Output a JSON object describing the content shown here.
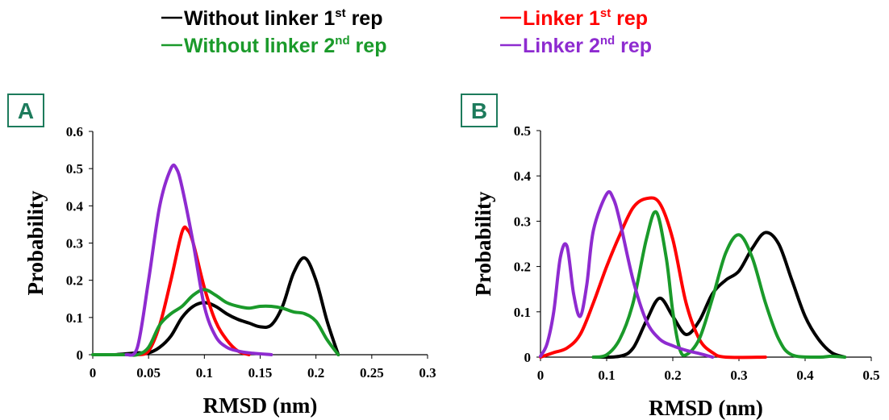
{
  "chart_data": [
    {
      "type": "line",
      "panel": "A",
      "x_label": "RMSD (nm)",
      "y_label": "Probability",
      "xlim": [
        0,
        0.3
      ],
      "ylim": [
        0,
        0.6
      ],
      "xticks": [
        0,
        0.05,
        0.1,
        0.15,
        0.2,
        0.25,
        0.3
      ],
      "yticks": [
        0,
        0.1,
        0.2,
        0.3,
        0.4,
        0.5,
        0.6
      ],
      "series": [
        {
          "name": [
            "Without linker 1",
            "st",
            " rep"
          ],
          "color": "#000000",
          "x": [
            0.02,
            0.04,
            0.05,
            0.06,
            0.07,
            0.08,
            0.09,
            0.1,
            0.11,
            0.12,
            0.13,
            0.14,
            0.15,
            0.16,
            0.17,
            0.18,
            0.19,
            0.2,
            0.21,
            0.22
          ],
          "values": [
            0,
            0.005,
            0.005,
            0.02,
            0.05,
            0.1,
            0.13,
            0.14,
            0.13,
            0.11,
            0.095,
            0.085,
            0.075,
            0.08,
            0.13,
            0.22,
            0.26,
            0.2,
            0.09,
            0
          ]
        },
        {
          "name": [
            "Linker 1",
            "st",
            " rep"
          ],
          "color": "#ff0000",
          "x": [
            0.04,
            0.05,
            0.06,
            0.07,
            0.08,
            0.085,
            0.09,
            0.1,
            0.11,
            0.12,
            0.13,
            0.14
          ],
          "values": [
            0,
            0.01,
            0.08,
            0.2,
            0.33,
            0.335,
            0.3,
            0.18,
            0.09,
            0.04,
            0.01,
            0
          ]
        },
        {
          "name": [
            "Without linker 2",
            "nd",
            " rep"
          ],
          "color": "#1a9a2a",
          "x": [
            0,
            0.03,
            0.04,
            0.05,
            0.06,
            0.07,
            0.08,
            0.09,
            0.1,
            0.11,
            0.12,
            0.13,
            0.14,
            0.15,
            0.16,
            0.17,
            0.18,
            0.19,
            0.2,
            0.21,
            0.22
          ],
          "values": [
            0,
            0,
            0,
            0.02,
            0.08,
            0.11,
            0.13,
            0.16,
            0.175,
            0.16,
            0.14,
            0.13,
            0.125,
            0.13,
            0.13,
            0.125,
            0.115,
            0.11,
            0.09,
            0.04,
            0
          ]
        },
        {
          "name": [
            "Linker 2",
            "nd",
            " rep"
          ],
          "color": "#8e2bd0",
          "x": [
            0.03,
            0.04,
            0.05,
            0.06,
            0.07,
            0.075,
            0.08,
            0.09,
            0.1,
            0.11,
            0.12,
            0.13,
            0.14,
            0.16
          ],
          "values": [
            0,
            0.02,
            0.2,
            0.4,
            0.5,
            0.5,
            0.45,
            0.3,
            0.13,
            0.05,
            0.02,
            0.01,
            0.005,
            0
          ]
        }
      ]
    },
    {
      "type": "line",
      "panel": "B",
      "x_label": "RMSD (nm)",
      "y_label": "Probability",
      "xlim": [
        0,
        0.5
      ],
      "ylim": [
        0,
        0.5
      ],
      "xticks": [
        0,
        0.1,
        0.2,
        0.3,
        0.4,
        0.5
      ],
      "yticks": [
        0,
        0.1,
        0.2,
        0.3,
        0.4,
        0.5
      ],
      "series": [
        {
          "color": "#000000",
          "x": [
            0.08,
            0.12,
            0.14,
            0.16,
            0.18,
            0.2,
            0.22,
            0.24,
            0.26,
            0.28,
            0.3,
            0.32,
            0.34,
            0.36,
            0.38,
            0.4,
            0.42,
            0.44,
            0.46
          ],
          "values": [
            0,
            0.002,
            0.02,
            0.08,
            0.13,
            0.09,
            0.05,
            0.08,
            0.14,
            0.17,
            0.19,
            0.24,
            0.275,
            0.25,
            0.17,
            0.09,
            0.04,
            0.01,
            0
          ]
        },
        {
          "color": "#ff0000",
          "x": [
            0,
            0.02,
            0.04,
            0.06,
            0.08,
            0.1,
            0.12,
            0.14,
            0.16,
            0.18,
            0.2,
            0.22,
            0.24,
            0.26,
            0.28,
            0.34
          ],
          "values": [
            0,
            0.01,
            0.02,
            0.05,
            0.12,
            0.2,
            0.27,
            0.33,
            0.35,
            0.34,
            0.26,
            0.12,
            0.04,
            0.01,
            0,
            0
          ]
        },
        {
          "color": "#1a9a2a",
          "x": [
            0.08,
            0.1,
            0.12,
            0.14,
            0.16,
            0.175,
            0.19,
            0.2,
            0.21,
            0.22,
            0.24,
            0.26,
            0.28,
            0.3,
            0.32,
            0.34,
            0.36,
            0.38,
            0.42,
            0.44,
            0.46
          ],
          "values": [
            0,
            0.005,
            0.04,
            0.12,
            0.26,
            0.32,
            0.22,
            0.1,
            0.02,
            0.005,
            0.04,
            0.13,
            0.23,
            0.27,
            0.22,
            0.12,
            0.04,
            0.005,
            0,
            0.002,
            0
          ]
        },
        {
          "color": "#8e2bd0",
          "x": [
            0,
            0.01,
            0.02,
            0.03,
            0.04,
            0.05,
            0.06,
            0.07,
            0.08,
            0.1,
            0.11,
            0.12,
            0.14,
            0.16,
            0.18,
            0.2,
            0.22,
            0.24,
            0.26
          ],
          "values": [
            0.002,
            0.03,
            0.1,
            0.22,
            0.245,
            0.14,
            0.09,
            0.16,
            0.28,
            0.36,
            0.35,
            0.3,
            0.17,
            0.08,
            0.04,
            0.025,
            0.015,
            0.008,
            0
          ]
        }
      ]
    }
  ]
}
